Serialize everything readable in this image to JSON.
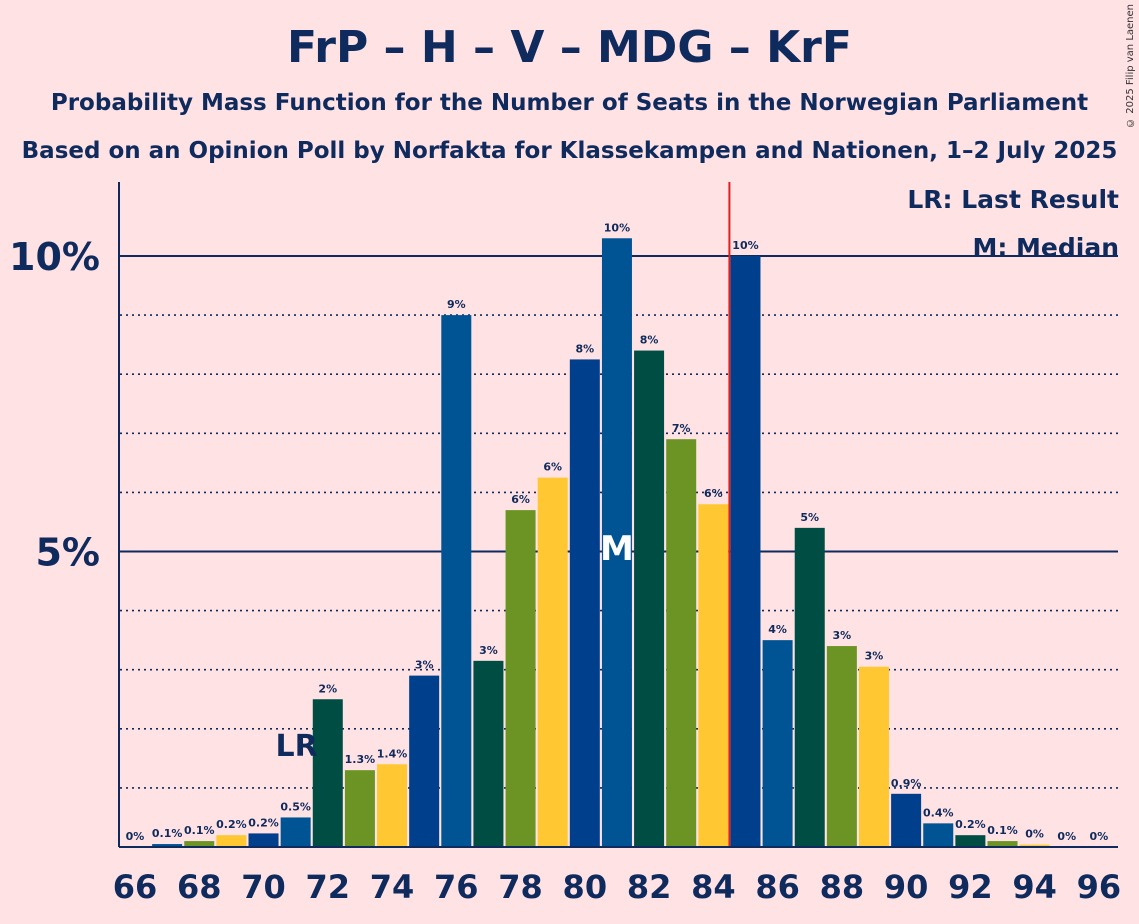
{
  "title": "FrP – H – V – MDG – KrF",
  "subtitle_1": "Probability Mass Function for the Number of Seats in the Norwegian Parliament",
  "subtitle_2": "Based on an Opinion Poll by Norfakta for Klassekampen and Nationen, 1–2 July 2025",
  "copyright": "© 2025 Filip van Laenen",
  "legend": {
    "last_result": "LR: Last Result",
    "median": "M: Median"
  },
  "colors": {
    "background": "#ffe2e4",
    "text": "#0f2a5c",
    "majority_line": "#e0201e",
    "palette": [
      "#003f8c",
      "#005494",
      "#004d43",
      "#6b9424",
      "#ffc832"
    ]
  },
  "chart_data": {
    "type": "bar",
    "x": [
      66,
      67,
      68,
      69,
      70,
      71,
      72,
      73,
      74,
      75,
      76,
      77,
      78,
      79,
      80,
      81,
      82,
      83,
      84,
      85,
      86,
      87,
      88,
      89,
      90,
      91,
      92,
      93,
      94,
      95,
      96
    ],
    "values": [
      0,
      0.05,
      0.1,
      0.2,
      0.23,
      0.5,
      2.5,
      1.3,
      1.4,
      2.9,
      9.0,
      3.15,
      5.7,
      6.25,
      8.25,
      10.3,
      8.4,
      6.9,
      5.8,
      10.0,
      3.5,
      5.4,
      3.4,
      3.05,
      0.9,
      0.4,
      0.2,
      0.1,
      0.04,
      0,
      0
    ],
    "labels": [
      "0%",
      "0.1%",
      "0.1%",
      "0.2%",
      "0.2%",
      "0.5%",
      "2%",
      "1.3%",
      "1.4%",
      "3%",
      "9%",
      "3%",
      "6%",
      "6%",
      "8%",
      "10%",
      "8%",
      "7%",
      "6%",
      "10%",
      "4%",
      "5%",
      "3%",
      "3%",
      "0.9%",
      "0.4%",
      "0.2%",
      "0.1%",
      "0%",
      "0%",
      "0%"
    ],
    "color_index": [
      0,
      1,
      3,
      4,
      0,
      1,
      2,
      3,
      4,
      0,
      1,
      2,
      3,
      4,
      0,
      1,
      2,
      3,
      4,
      0,
      1,
      2,
      3,
      4,
      0,
      1,
      2,
      3,
      4,
      0,
      1
    ],
    "x_tick_labels": [
      "66",
      "68",
      "70",
      "72",
      "74",
      "76",
      "78",
      "80",
      "82",
      "84",
      "86",
      "88",
      "90",
      "92",
      "94",
      "96"
    ],
    "y_tick_labels": [
      "5%",
      "10%"
    ],
    "ylim": [
      0,
      11
    ],
    "last_result_seat": 71,
    "last_result_marker": "LR",
    "median_seat": 81,
    "median_marker": "M",
    "majority_line_at": 84.5
  }
}
